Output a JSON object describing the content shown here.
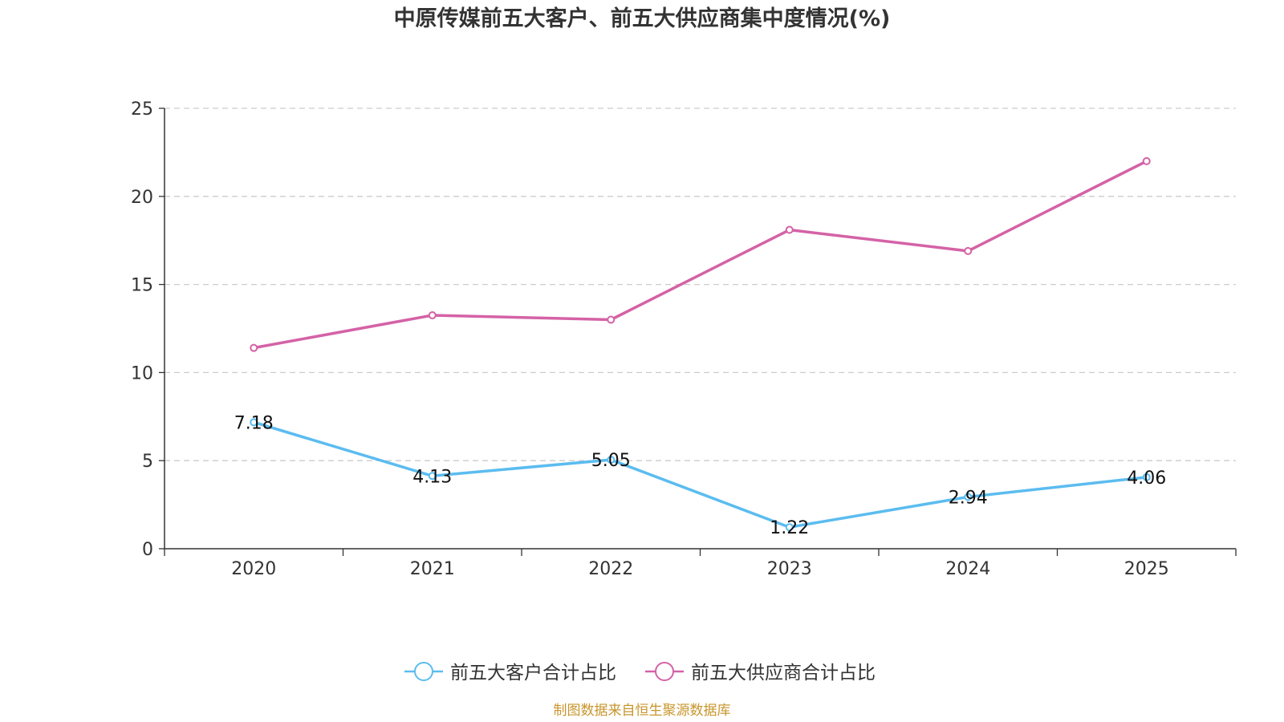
{
  "chart_data": {
    "type": "line",
    "title": "中原传媒前五大客户、前五大供应商集中度情况(%)",
    "categories": [
      "2020",
      "2021",
      "2022",
      "2023",
      "2024",
      "2025"
    ],
    "ylim": [
      0,
      25
    ],
    "yticks": [
      0,
      5,
      10,
      15,
      20,
      25
    ],
    "grid": true,
    "legend_position": "bottom-center",
    "series": [
      {
        "name": "前五大客户合计占比",
        "color": "#5bbcf0",
        "values": [
          7.18,
          4.13,
          5.05,
          1.22,
          2.94,
          4.06
        ],
        "labels": [
          "7.18",
          "4.13",
          "5.05",
          "1.22",
          "2.94",
          "4.06"
        ],
        "show_labels": true
      },
      {
        "name": "前五大供应商合计占比",
        "color": "#d462a6",
        "values": [
          11.4,
          13.25,
          13.0,
          18.1,
          16.9,
          22.0
        ],
        "show_labels": false
      }
    ],
    "source": "制图数据来自恒生聚源数据库"
  }
}
